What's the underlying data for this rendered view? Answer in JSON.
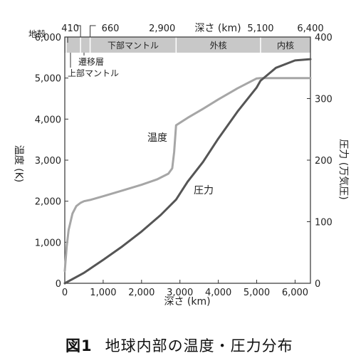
{
  "chart_data": {
    "type": "line",
    "xlabel": "深さ (km)",
    "xlim": [
      0,
      6400
    ],
    "x_ticks": [
      "0",
      "1,000",
      "2,000",
      "3,000",
      "4,000",
      "5,000",
      "6,000"
    ],
    "x_tick_values": [
      0,
      1000,
      2000,
      3000,
      4000,
      5000,
      6000
    ],
    "ylabel_left": "温度 (K)",
    "ylim_left": [
      0,
      6000
    ],
    "y_left_ticks": [
      "0",
      "1,000",
      "2,000",
      "3,000",
      "4,000",
      "5,000",
      "6,000"
    ],
    "y_left_tick_values": [
      0,
      1000,
      2000,
      3000,
      4000,
      5000,
      6000
    ],
    "ylabel_right": "圧力 (万気圧)",
    "ylim_right": [
      0,
      400
    ],
    "y_right_ticks": [
      "0",
      "100",
      "200",
      "300",
      "400"
    ],
    "y_right_tick_values": [
      0,
      100,
      200,
      300,
      400
    ],
    "top_axis_label": "深さ (km)",
    "top_ticks": [
      "410",
      "660",
      "2,900",
      "5,100",
      "6,400"
    ],
    "top_tick_values": [
      410,
      660,
      2900,
      5100,
      6400
    ],
    "layers": [
      {
        "name": "地殻",
        "from": 0,
        "to": 35
      },
      {
        "name": "上部マントル",
        "from": 35,
        "to": 410
      },
      {
        "name": "遷移層",
        "from": 410,
        "to": 660
      },
      {
        "name": "下部マントル",
        "from": 660,
        "to": 2900
      },
      {
        "name": "外核",
        "from": 2900,
        "to": 5100
      },
      {
        "name": "内核",
        "from": 5100,
        "to": 6400
      }
    ],
    "series": [
      {
        "name": "温度",
        "axis": "left",
        "color": "#a6a6a6",
        "x": [
          0,
          50,
          100,
          200,
          300,
          410,
          500,
          660,
          1000,
          1500,
          2000,
          2400,
          2700,
          2800,
          2850,
          2900,
          3200,
          3600,
          4000,
          4500,
          5000,
          5100,
          5200,
          6400
        ],
        "y": [
          300,
          900,
          1300,
          1700,
          1880,
          1960,
          2000,
          2030,
          2120,
          2260,
          2400,
          2530,
          2670,
          2800,
          3200,
          3850,
          4030,
          4250,
          4480,
          4750,
          4990,
          5000,
          5000,
          5000
        ]
      },
      {
        "name": "圧力",
        "axis": "right",
        "color": "#555555",
        "x": [
          0,
          500,
          1000,
          1500,
          2000,
          2500,
          2900,
          3200,
          3600,
          4000,
          4500,
          5000,
          5100,
          5500,
          6000,
          6400
        ],
        "y": [
          0,
          17,
          38,
          60,
          84,
          111,
          136,
          165,
          197,
          235,
          279,
          318,
          329,
          350,
          362,
          364
        ]
      }
    ]
  },
  "caption": {
    "number": "図1",
    "text": "地球内部の温度・圧力分布"
  }
}
